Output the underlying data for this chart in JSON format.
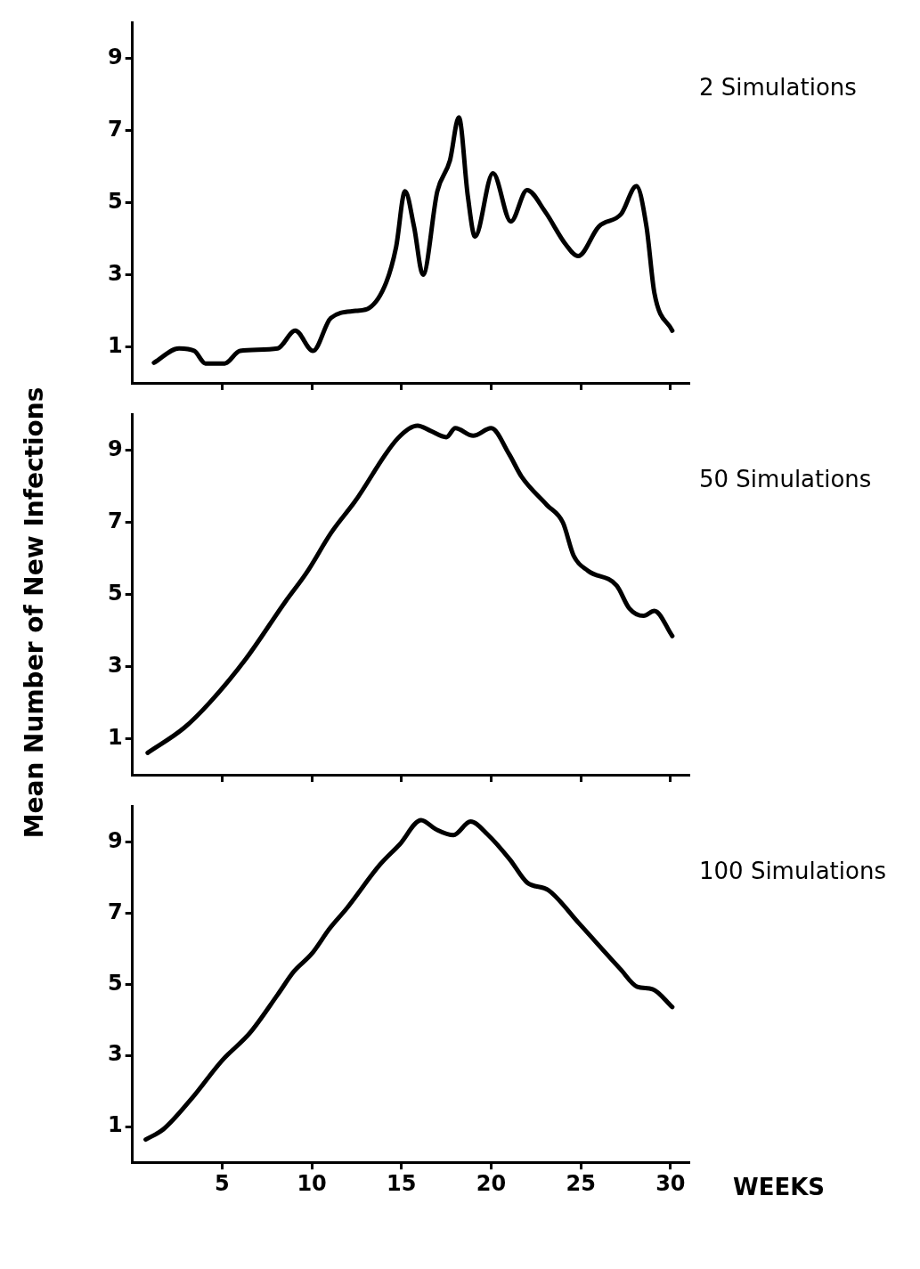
{
  "chart_data": [
    {
      "type": "line",
      "annotations": [
        "2 Simulations"
      ],
      "xlim": [
        0,
        31
      ],
      "xticks": [
        5,
        10,
        15,
        20,
        25,
        30
      ],
      "ylim": [
        0,
        10
      ],
      "yticks": [
        1,
        3,
        5,
        7,
        9
      ],
      "tick_labels": "y",
      "series": [
        {
          "color": "#000000",
          "x": [
            1.2,
            2.6,
            3.45,
            4.07,
            5.14,
            6.0,
            8.1,
            9.08,
            10.07,
            11.06,
            12.46,
            13.2,
            14.15,
            14.7,
            15.2,
            15.7,
            16.2,
            17.0,
            17.7,
            18.2,
            18.7,
            19.1,
            20.1,
            21.1,
            22.0,
            23.0,
            24.15,
            24.85,
            26.0,
            27.25,
            28.1,
            28.66,
            29.1,
            30.1
          ],
          "values": [
            0.56,
            0.96,
            0.89,
            0.54,
            0.54,
            0.89,
            0.96,
            1.45,
            0.89,
            1.8,
            2.0,
            2.08,
            2.79,
            3.77,
            5.32,
            4.34,
            3.0,
            5.32,
            6.17,
            7.37,
            5.18,
            4.06,
            5.82,
            4.48,
            5.35,
            4.76,
            3.85,
            3.52,
            4.34,
            4.69,
            5.46,
            4.34,
            2.5,
            1.45
          ]
        }
      ]
    },
    {
      "type": "line",
      "ylabel": "Mean Number of New Infections",
      "annotations": [
        "50 Simulations"
      ],
      "xlim": [
        0,
        31
      ],
      "xticks": [
        5,
        10,
        15,
        20,
        25,
        30
      ],
      "ylim": [
        0,
        10
      ],
      "yticks": [
        1,
        3,
        5,
        7,
        9
      ],
      "tick_labels": "y",
      "series": [
        {
          "color": "#000000",
          "x": [
            0.85,
            2.9,
            4.3,
            6.3,
            8.55,
            9.7,
            11.1,
            12.4,
            14.8,
            15.9,
            16.6,
            17.5,
            18.0,
            19.0,
            20.0,
            21.0,
            21.7,
            23.1,
            24.0,
            24.6,
            25.4,
            27.0,
            27.7,
            28.5,
            29.1,
            30.1
          ],
          "values": [
            0.61,
            1.31,
            2.0,
            3.2,
            4.82,
            5.6,
            6.73,
            7.58,
            9.34,
            9.69,
            9.55,
            9.37,
            9.62,
            9.41,
            9.62,
            8.9,
            8.27,
            7.49,
            7.0,
            6.08,
            5.66,
            5.25,
            4.62,
            4.41,
            4.55,
            3.85
          ]
        }
      ]
    },
    {
      "type": "line",
      "xlabel": "WEEKS",
      "annotations": [
        "100 Simulations"
      ],
      "xlim": [
        0,
        31
      ],
      "xticks": [
        5,
        10,
        15,
        20,
        25,
        30
      ],
      "ylim": [
        0,
        10
      ],
      "yticks": [
        1,
        3,
        5,
        7,
        9
      ],
      "series": [
        {
          "color": "#000000",
          "x": [
            0.74,
            1.73,
            3.3,
            5.0,
            6.56,
            8.1,
            9.0,
            10.0,
            11.0,
            11.96,
            13.8,
            14.9,
            16.1,
            16.9,
            17.9,
            18.85,
            19.8,
            21.05,
            22.0,
            23.2,
            24.9,
            27.2,
            28.15,
            29.0,
            30.1
          ],
          "values": [
            0.64,
            0.93,
            1.79,
            2.86,
            3.64,
            4.71,
            5.36,
            5.86,
            6.57,
            7.14,
            8.36,
            8.93,
            9.61,
            9.36,
            9.19,
            9.57,
            9.21,
            8.5,
            7.86,
            7.64,
            6.71,
            5.43,
            4.93,
            4.86,
            4.36
          ]
        }
      ]
    }
  ]
}
